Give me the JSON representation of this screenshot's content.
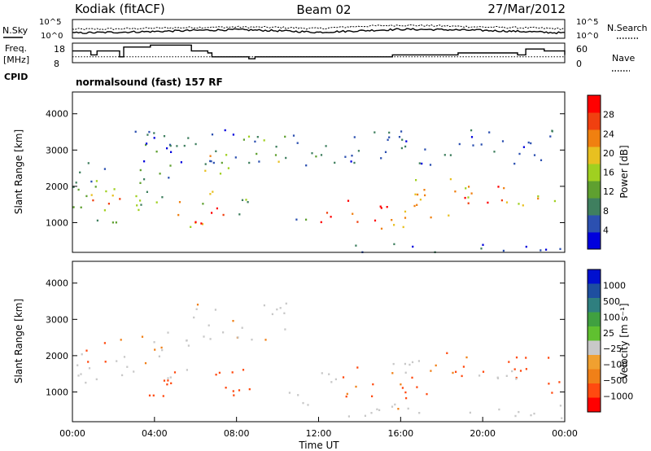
{
  "header": {
    "site": "Kodiak (fitACF)",
    "beam": "Beam 02",
    "date": "27/Mar/2012"
  },
  "status_panels": {
    "nsky_label": "N.Sky",
    "nsearch_label": "N.Search",
    "noise_ticks": [
      "10^5",
      "10^0"
    ],
    "freq_label": "Freq.",
    "freq_unit": "[MHz]",
    "freq_ticks": [
      "18",
      "8"
    ],
    "nave_label": "Nave",
    "nave_ticks": [
      "60",
      "0"
    ],
    "cpid_label": "CPID",
    "cpid_value": "normalsound (fast) 157 RF"
  },
  "colors": {
    "power_scale": [
      "#0000dd",
      "#2c50b0",
      "#3f7f5f",
      "#5fa030",
      "#a0d020",
      "#e8c020",
      "#f08010",
      "#f04010",
      "#ff0000"
    ],
    "velocity_scale": [
      "#ff0000",
      "#ff4a10",
      "#f08018",
      "#f0a030",
      "#c8c8c8",
      "#60c030",
      "#40a040",
      "#2f7f7f",
      "#1e4fa0",
      "#0010d0"
    ]
  },
  "chart_data": [
    {
      "type": "line",
      "name": "noise",
      "ylabel": "N.Sky",
      "y2label": "N.Search",
      "x": [
        0,
        2,
        4,
        6,
        8,
        10,
        12,
        14,
        16,
        18,
        20,
        22,
        24
      ],
      "series": [
        {
          "values": [
            2.4,
            2.5,
            2.7,
            2.9,
            3.0,
            2.9,
            2.6,
            3.2,
            3.5,
            3.3,
            3.0,
            2.8,
            2.5
          ]
        },
        {
          "values": [
            1.4,
            1.6,
            1.8,
            2.1,
            2.3,
            2.0,
            1.6,
            2.0,
            2.4,
            2.3,
            2.1,
            1.8,
            1.4
          ]
        }
      ],
      "ylim": [
        0,
        5
      ]
    },
    {
      "type": "line",
      "name": "frequency",
      "ylabel": "Freq. [MHz]",
      "y2label": "Nave",
      "x": [
        0,
        0.9,
        1.2,
        2.3,
        2.5,
        3.8,
        5.8,
        6.6,
        6.8,
        8.6,
        8.9,
        11.6,
        11.7,
        15.6,
        17.0,
        18.8,
        20.6,
        21.7,
        22.1,
        23.0,
        24.0
      ],
      "series": [
        {
          "values": [
            14,
            12,
            14,
            11,
            16,
            17,
            14,
            13,
            11,
            10,
            11,
            11,
            11,
            12,
            12,
            13,
            13,
            12,
            15,
            14,
            12
          ]
        },
        {
          "values": [
            11,
            11,
            11,
            11,
            11,
            11,
            11,
            11,
            11,
            11,
            11,
            11,
            11,
            11,
            11,
            11,
            11,
            11,
            11,
            11,
            11
          ]
        }
      ],
      "ylim": [
        8,
        18
      ]
    },
    {
      "type": "heatmap",
      "name": "power",
      "xlabel": "",
      "ylabel": "Slant Range [km]",
      "xlim": [
        0,
        24
      ],
      "ylim": [
        180,
        4600
      ],
      "yticks": [
        1000,
        2000,
        3000,
        4000
      ],
      "colorbar": {
        "label": "Power [dB]",
        "ticks": [
          4,
          8,
          12,
          16,
          20,
          24,
          28
        ],
        "range": [
          0,
          32
        ]
      },
      "regions": [
        {
          "t": [
            0.0,
            3.5
          ],
          "r": [
            1000,
            2200
          ],
          "v": 14
        },
        {
          "t": [
            0.6,
            2.6
          ],
          "r": [
            1300,
            1900
          ],
          "v": 22
        },
        {
          "t": [
            2.6,
            5.0
          ],
          "r": [
            1300,
            2600
          ],
          "v": 11
        },
        {
          "t": [
            4.0,
            6.4
          ],
          "r": [
            900,
            1600
          ],
          "v": 18
        },
        {
          "t": [
            5.6,
            7.4
          ],
          "r": [
            800,
            1500
          ],
          "v": 28
        },
        {
          "t": [
            6.0,
            7.6
          ],
          "r": [
            1700,
            3000
          ],
          "v": 18
        },
        {
          "t": [
            7.4,
            9.0
          ],
          "r": [
            1000,
            1700
          ],
          "v": 12
        },
        {
          "t": [
            8.0,
            10.4
          ],
          "r": [
            2600,
            3500
          ],
          "v": 14
        },
        {
          "t": [
            3.2,
            4.4
          ],
          "r": [
            2800,
            3300
          ],
          "v": 10
        },
        {
          "t": [
            10.4,
            11.4
          ],
          "r": [
            1000,
            1500
          ],
          "v": 10
        },
        {
          "t": [
            12.0,
            15.4
          ],
          "r": [
            850,
            1700
          ],
          "v": 29
        },
        {
          "t": [
            15.0,
            17.0
          ],
          "r": [
            800,
            1400
          ],
          "v": 22
        },
        {
          "t": [
            16.6,
            19.6
          ],
          "r": [
            1100,
            2300
          ],
          "v": 20
        },
        {
          "t": [
            19.0,
            23.0
          ],
          "r": [
            1500,
            2200
          ],
          "v": 26
        },
        {
          "t": [
            21.0,
            23.6
          ],
          "r": [
            1500,
            1800
          ],
          "v": 16
        },
        {
          "t": [
            12.0,
            24.0
          ],
          "r": [
            200,
            450
          ],
          "v": 6
        },
        {
          "t": [
            3.0,
            24.0
          ],
          "r": [
            2600,
            3600
          ],
          "v": 6
        },
        {
          "t": [
            0.0,
            1.6
          ],
          "r": [
            2100,
            2800
          ],
          "v": 6
        }
      ]
    },
    {
      "type": "heatmap",
      "name": "velocity",
      "xlabel": "Time UT",
      "ylabel": "Slant Range [km]",
      "xlim": [
        0,
        24
      ],
      "ylim": [
        180,
        4600
      ],
      "yticks": [
        1000,
        2000,
        3000,
        4000
      ],
      "xticks": [
        "00:00",
        "04:00",
        "08:00",
        "12:00",
        "16:00",
        "20:00",
        "00:00"
      ],
      "colorbar": {
        "label": "Velocity [m s⁻¹]",
        "ticks": [
          "1000",
          "500",
          "100",
          "25",
          "−25",
          "−100",
          "−500",
          "−1000"
        ]
      },
      "regions": [
        {
          "t": [
            0.0,
            2.6
          ],
          "r": [
            1200,
            2200
          ],
          "v": 0
        },
        {
          "t": [
            0.6,
            2.4
          ],
          "r": [
            1800,
            2500
          ],
          "v": -120
        },
        {
          "t": [
            2.6,
            5.8
          ],
          "r": [
            1400,
            2700
          ],
          "v": 0
        },
        {
          "t": [
            3.6,
            9.0
          ],
          "r": [
            900,
            1700
          ],
          "v": -180
        },
        {
          "t": [
            5.8,
            10.4
          ],
          "r": [
            2300,
            3500
          ],
          "v": 0
        },
        {
          "t": [
            10.4,
            11.6
          ],
          "r": [
            650,
            1300
          ],
          "v": 0
        },
        {
          "t": [
            12.0,
            13.4
          ],
          "r": [
            1100,
            1800
          ],
          "v": 80
        },
        {
          "t": [
            13.0,
            17.4
          ],
          "r": [
            800,
            1700
          ],
          "v": -150
        },
        {
          "t": [
            15.4,
            17.0
          ],
          "r": [
            1100,
            2100
          ],
          "v": 60
        },
        {
          "t": [
            17.0,
            23.2
          ],
          "r": [
            1400,
            2100
          ],
          "v": -150
        },
        {
          "t": [
            19.0,
            22.0
          ],
          "r": [
            1200,
            1700
          ],
          "v": 40
        },
        {
          "t": [
            23.0,
            24.0
          ],
          "r": [
            1000,
            1900
          ],
          "v": -150
        },
        {
          "t": [
            11.4,
            24.0
          ],
          "r": [
            300,
            700
          ],
          "v": 0
        }
      ]
    }
  ]
}
